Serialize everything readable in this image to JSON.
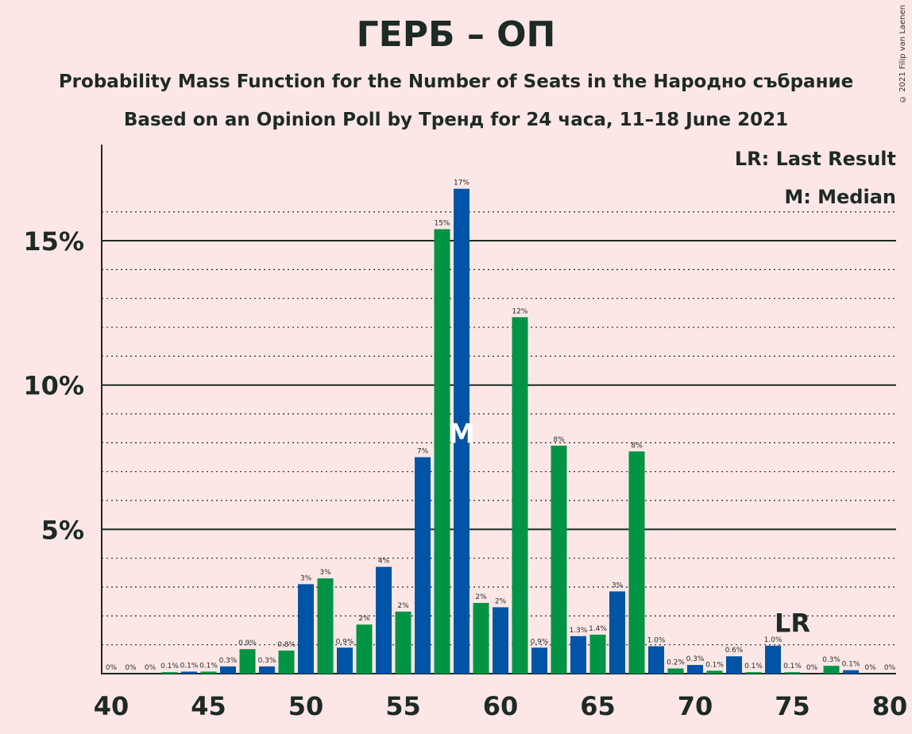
{
  "title": "ГЕРБ – ОП",
  "subtitle": "Probability Mass Function for the Number of Seats in the Народно събрание",
  "subtitle2": "Based on an Opinion Poll by Тренд for 24 часа, 11–18 June 2021",
  "copyright": "© 2021 Filip van Laenen",
  "legend": {
    "lr": "LR: Last Result",
    "m": "M: Median"
  },
  "colors": {
    "blue": "#0054a6",
    "green": "#009444",
    "background": "#fde7e6"
  },
  "chart_data": {
    "type": "bar",
    "xlabel": "",
    "ylabel": "",
    "ylim": [
      0,
      18
    ],
    "xlim": [
      40,
      80
    ],
    "x_ticks": [
      40,
      45,
      50,
      55,
      60,
      65,
      70,
      75,
      80
    ],
    "y_ticks": [
      {
        "value": 5,
        "label": "5%"
      },
      {
        "value": 10,
        "label": "10%"
      },
      {
        "value": 15,
        "label": "15%"
      }
    ],
    "grid": "dotted every 1%, solid every 5%",
    "median": 58,
    "median_label": "M",
    "last_result": 75,
    "last_result_label": "LR",
    "bars": [
      {
        "seats": 40,
        "value": 0,
        "label": "0%"
      },
      {
        "seats": 41,
        "value": 0,
        "label": "0%"
      },
      {
        "seats": 42,
        "value": 0,
        "label": "0%"
      },
      {
        "seats": 43,
        "value": 0.05,
        "label": "0.1%"
      },
      {
        "seats": 44,
        "value": 0.07,
        "label": "0.1%"
      },
      {
        "seats": 45,
        "value": 0.07,
        "label": "0.1%"
      },
      {
        "seats": 46,
        "value": 0.25,
        "label": "0.3%"
      },
      {
        "seats": 47,
        "value": 0.85,
        "label": "0.9%"
      },
      {
        "seats": 48,
        "value": 0.25,
        "label": "0.3%"
      },
      {
        "seats": 49,
        "value": 0.8,
        "label": "0.8%"
      },
      {
        "seats": 50,
        "value": 3.1,
        "label": "3%"
      },
      {
        "seats": 51,
        "value": 3.3,
        "label": "3%"
      },
      {
        "seats": 52,
        "value": 0.9,
        "label": "0.9%"
      },
      {
        "seats": 53,
        "value": 1.7,
        "label": "2%"
      },
      {
        "seats": 54,
        "value": 3.7,
        "label": "4%"
      },
      {
        "seats": 55,
        "value": 2.15,
        "label": "2%"
      },
      {
        "seats": 56,
        "value": 7.5,
        "label": "7%"
      },
      {
        "seats": 57,
        "value": 15.4,
        "label": "15%"
      },
      {
        "seats": 58,
        "value": 16.8,
        "label": "17%"
      },
      {
        "seats": 59,
        "value": 2.45,
        "label": "2%"
      },
      {
        "seats": 60,
        "value": 2.3,
        "label": "2%"
      },
      {
        "seats": 61,
        "value": 12.35,
        "label": "12%"
      },
      {
        "seats": 62,
        "value": 0.9,
        "label": "0.9%"
      },
      {
        "seats": 63,
        "value": 7.9,
        "label": "8%"
      },
      {
        "seats": 64,
        "value": 1.3,
        "label": "1.3%"
      },
      {
        "seats": 65,
        "value": 1.35,
        "label": "1.4%"
      },
      {
        "seats": 66,
        "value": 2.85,
        "label": "3%"
      },
      {
        "seats": 67,
        "value": 7.7,
        "label": "8%"
      },
      {
        "seats": 68,
        "value": 0.95,
        "label": "1.0%"
      },
      {
        "seats": 69,
        "value": 0.18,
        "label": "0.2%"
      },
      {
        "seats": 70,
        "value": 0.3,
        "label": "0.3%"
      },
      {
        "seats": 71,
        "value": 0.1,
        "label": "0.1%"
      },
      {
        "seats": 72,
        "value": 0.6,
        "label": "0.6%"
      },
      {
        "seats": 73,
        "value": 0.05,
        "label": "0.1%"
      },
      {
        "seats": 74,
        "value": 0.97,
        "label": "1.0%"
      },
      {
        "seats": 75,
        "value": 0.05,
        "label": "0.1%"
      },
      {
        "seats": 76,
        "value": 0,
        "label": "0%"
      },
      {
        "seats": 77,
        "value": 0.27,
        "label": "0.3%"
      },
      {
        "seats": 78,
        "value": 0.12,
        "label": "0.1%"
      },
      {
        "seats": 79,
        "value": 0,
        "label": "0%"
      },
      {
        "seats": 80,
        "value": 0,
        "label": "0%"
      }
    ]
  }
}
